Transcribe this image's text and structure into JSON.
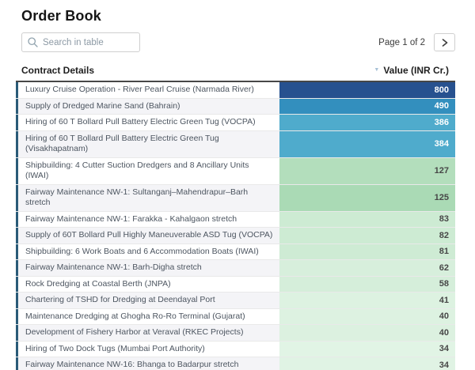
{
  "page": {
    "title": "Order Book"
  },
  "search": {
    "placeholder": "Search in table"
  },
  "pagination": {
    "label": "Page 1 of 2"
  },
  "colors": {
    "accent_border": "#2a5b78",
    "header_rule": "#474747",
    "blue_dark": "#27518f",
    "blue_mid": "#338fbe",
    "blue_light": "#4fabcc",
    "stripe": "#f4f4f7"
  },
  "table": {
    "columns": {
      "contract": "Contract Details",
      "value": "Value (INR Cr.)"
    },
    "sort_icon": "▼",
    "rows": [
      {
        "contract": "Luxury Cruise Operation - River Pearl Cruise (Narmada River)",
        "value": "800",
        "bg": "#27518f",
        "fg": "#ffffff"
      },
      {
        "contract": "Supply of Dredged Marine Sand (Bahrain)",
        "value": "490",
        "bg": "#338fbe",
        "fg": "#ffffff"
      },
      {
        "contract": "Hiring of 60 T Bollard Pull Battery Electric Green Tug (VOCPA)",
        "value": "386",
        "bg": "#4fabcc",
        "fg": "#ffffff"
      },
      {
        "contract": [
          "Hiring of 60 T Bollard Pull Battery Electric Green Tug",
          "(Visakhapatnam)"
        ],
        "value": "384",
        "bg": "#4fabcc",
        "fg": "#ffffff"
      },
      {
        "contract": [
          "Shipbuilding: 4 Cutter Suction Dredgers and 8 Ancillary Units",
          "(IWAI)"
        ],
        "value": "127",
        "bg": "#b3debc",
        "fg": "#474747"
      },
      {
        "contract": [
          "Fairway Maintenance NW-1: Sultanganj–Mahendrapur–Barh",
          "stretch"
        ],
        "value": "125",
        "bg": "#aadab5",
        "fg": "#474747"
      },
      {
        "contract": "Fairway Maintenance NW-1: Farakka - Kahalgaon stretch",
        "value": "83",
        "bg": "#cdebd3",
        "fg": "#474747"
      },
      {
        "contract": "Supply of 60T Bollard Pull Highly Maneuverable ASD Tug (VOCPA)",
        "value": "82",
        "bg": "#cdebd3",
        "fg": "#474747"
      },
      {
        "contract": "Shipbuilding: 6 Work Boats and 6 Accommodation Boats (IWAI)",
        "value": "81",
        "bg": "#ceebd4",
        "fg": "#474747"
      },
      {
        "contract": "Fairway Maintenance NW-1: Barh-Digha stretch",
        "value": "62",
        "bg": "#d7efdc",
        "fg": "#474747"
      },
      {
        "contract": "Rock Dredging at Coastal Berth (JNPA)",
        "value": "58",
        "bg": "#d5eeda",
        "fg": "#474747"
      },
      {
        "contract": "Chartering of TSHD for Dredging at Deendayal Port",
        "value": "41",
        "bg": "#ddf2e1",
        "fg": "#474747"
      },
      {
        "contract": "Maintenance Dredging at Ghogha Ro-Ro Terminal (Gujarat)",
        "value": "40",
        "bg": "#ddf2e1",
        "fg": "#474747"
      },
      {
        "contract": "Development of Fishery Harbor at Veraval (RKEC Projects)",
        "value": "40",
        "bg": "#dcf1e0",
        "fg": "#474747"
      },
      {
        "contract": "Hiring of Two Dock Tugs (Mumbai Port Authority)",
        "value": "34",
        "bg": "#e1f4e5",
        "fg": "#474747"
      },
      {
        "contract": "Fairway Maintenance NW-16: Bhanga to Badarpur stretch",
        "value": "34",
        "bg": "#e0f3e4",
        "fg": "#474747"
      }
    ]
  }
}
